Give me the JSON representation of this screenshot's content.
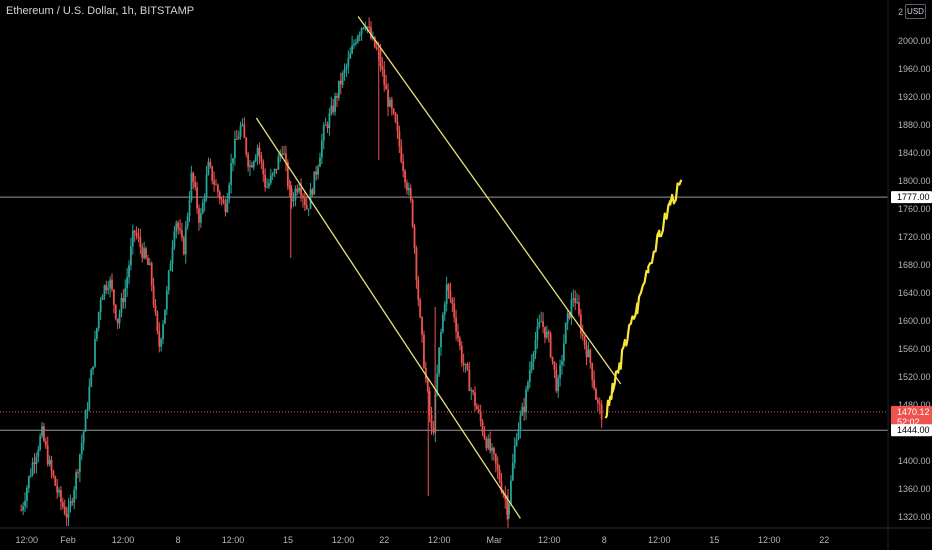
{
  "header": {
    "title": "Ethereum / U.S. Dollar, 1h, BITSTAMP",
    "currency_button": "USD",
    "corner_tick": "2"
  },
  "colors": {
    "background": "#000000",
    "axis_text": "#b2b5be",
    "candle_up": "#26a69a",
    "candle_down": "#ef5350",
    "trendline": "#e8e27a",
    "projection": "#f5e63a",
    "horizontal_line": "#9598a1",
    "price_line": "#ef5350"
  },
  "chart_data": {
    "type": "candlestick",
    "instrument": "Ethereum / U.S. Dollar",
    "interval": "1h",
    "exchange": "BITSTAMP",
    "ylim": [
      1300,
      2040
    ],
    "y_ticks": [
      1320,
      1360,
      1400,
      1440,
      1480,
      1520,
      1560,
      1600,
      1640,
      1680,
      1720,
      1760,
      1800,
      1840,
      1880,
      1920,
      1960,
      2000
    ],
    "y_tick_labels": [
      "1320.00",
      "1360.00",
      "1400.00",
      "1440.00",
      "1480.00",
      "1520.00",
      "1560.00",
      "1600.00",
      "1640.00",
      "1680.00",
      "1720.00",
      "1760.00",
      "1800.00",
      "1840.00",
      "1880.00",
      "1920.00",
      "1960.00",
      "2000.00"
    ],
    "x_axis": {
      "start_day": -3.5,
      "end_day": 37.5,
      "tick_labels": [
        {
          "day": -3,
          "label": "12:00"
        },
        {
          "day": 0,
          "label": "Feb"
        },
        {
          "day": 4,
          "label": "12:00"
        },
        {
          "day": 8,
          "label": "8"
        },
        {
          "day": 12,
          "label": "12:00"
        },
        {
          "day": 16,
          "label": "15"
        },
        {
          "day": 20,
          "label": "12:00"
        },
        {
          "day": 23,
          "label": "22"
        },
        {
          "day": 27,
          "label": "12:00"
        },
        {
          "day": 31,
          "label": "Mar"
        },
        {
          "day": 35,
          "label": "12:00"
        },
        {
          "day": 39,
          "label": "8"
        },
        {
          "day": 43,
          "label": "12:00"
        },
        {
          "day": 47,
          "label": "15"
        },
        {
          "day": 51,
          "label": "12:00"
        },
        {
          "day": 55,
          "label": "22"
        }
      ]
    },
    "price_path": [
      [
        -3.4,
        1330
      ],
      [
        -2.6,
        1395
      ],
      [
        -1.9,
        1440
      ],
      [
        -1.3,
        1390
      ],
      [
        -0.6,
        1345
      ],
      [
        0.0,
        1320
      ],
      [
        0.6,
        1380
      ],
      [
        1.2,
        1450
      ],
      [
        1.8,
        1540
      ],
      [
        2.4,
        1640
      ],
      [
        3.0,
        1660
      ],
      [
        3.6,
        1600
      ],
      [
        4.2,
        1650
      ],
      [
        4.8,
        1730
      ],
      [
        5.4,
        1700
      ],
      [
        6.0,
        1670
      ],
      [
        6.6,
        1560
      ],
      [
        7.2,
        1640
      ],
      [
        7.8,
        1750
      ],
      [
        8.4,
        1700
      ],
      [
        9.0,
        1810
      ],
      [
        9.6,
        1740
      ],
      [
        10.2,
        1820
      ],
      [
        10.8,
        1790
      ],
      [
        11.4,
        1760
      ],
      [
        12.0,
        1840
      ],
      [
        12.6,
        1880
      ],
      [
        13.2,
        1820
      ],
      [
        13.8,
        1850
      ],
      [
        14.4,
        1790
      ],
      [
        15.0,
        1810
      ],
      [
        15.6,
        1850
      ],
      [
        16.2,
        1770
      ],
      [
        16.8,
        1800
      ],
      [
        17.4,
        1760
      ],
      [
        18.0,
        1810
      ],
      [
        18.6,
        1870
      ],
      [
        19.2,
        1900
      ],
      [
        19.8,
        1940
      ],
      [
        20.4,
        1970
      ],
      [
        21.0,
        2010
      ],
      [
        21.6,
        2030
      ],
      [
        22.1,
        2000
      ],
      [
        22.6,
        1980
      ],
      [
        23.2,
        1920
      ],
      [
        23.8,
        1880
      ],
      [
        24.4,
        1820
      ],
      [
        25.0,
        1760
      ],
      [
        25.6,
        1600
      ],
      [
        26.0,
        1520
      ],
      [
        26.5,
        1430
      ],
      [
        27.0,
        1560
      ],
      [
        27.5,
        1650
      ],
      [
        28.0,
        1620
      ],
      [
        28.6,
        1550
      ],
      [
        29.2,
        1510
      ],
      [
        29.8,
        1470
      ],
      [
        30.4,
        1430
      ],
      [
        31.0,
        1400
      ],
      [
        31.6,
        1360
      ],
      [
        32.0,
        1330
      ],
      [
        32.6,
        1440
      ],
      [
        33.2,
        1480
      ],
      [
        33.8,
        1560
      ],
      [
        34.4,
        1600
      ],
      [
        35.0,
        1570
      ],
      [
        35.6,
        1500
      ],
      [
        36.2,
        1590
      ],
      [
        36.8,
        1640
      ],
      [
        37.4,
        1580
      ],
      [
        38.0,
        1540
      ],
      [
        38.5,
        1480
      ],
      [
        38.9,
        1465
      ]
    ],
    "price_tags": [
      {
        "price": 1777,
        "label": "1777.00",
        "style": "horizontal_line"
      },
      {
        "price": 1470.12,
        "label": "1470.12",
        "sublabel": "52:02",
        "style": "current_price"
      },
      {
        "price": 1444,
        "label": "1444.00",
        "style": "horizontal_line"
      }
    ],
    "drawings": {
      "trendlines": [
        {
          "from": [
            13.7,
            1890
          ],
          "to": [
            32.9,
            1318
          ]
        },
        {
          "from": [
            21.1,
            2035
          ],
          "to": [
            40.2,
            1510
          ]
        }
      ],
      "projection_path": [
        [
          39.1,
          1465
        ],
        [
          39.6,
          1500
        ],
        [
          40.1,
          1535
        ],
        [
          40.7,
          1580
        ],
        [
          41.4,
          1620
        ],
        [
          42.2,
          1680
        ],
        [
          43.0,
          1720
        ],
        [
          43.8,
          1770
        ],
        [
          44.6,
          1795
        ]
      ]
    }
  }
}
